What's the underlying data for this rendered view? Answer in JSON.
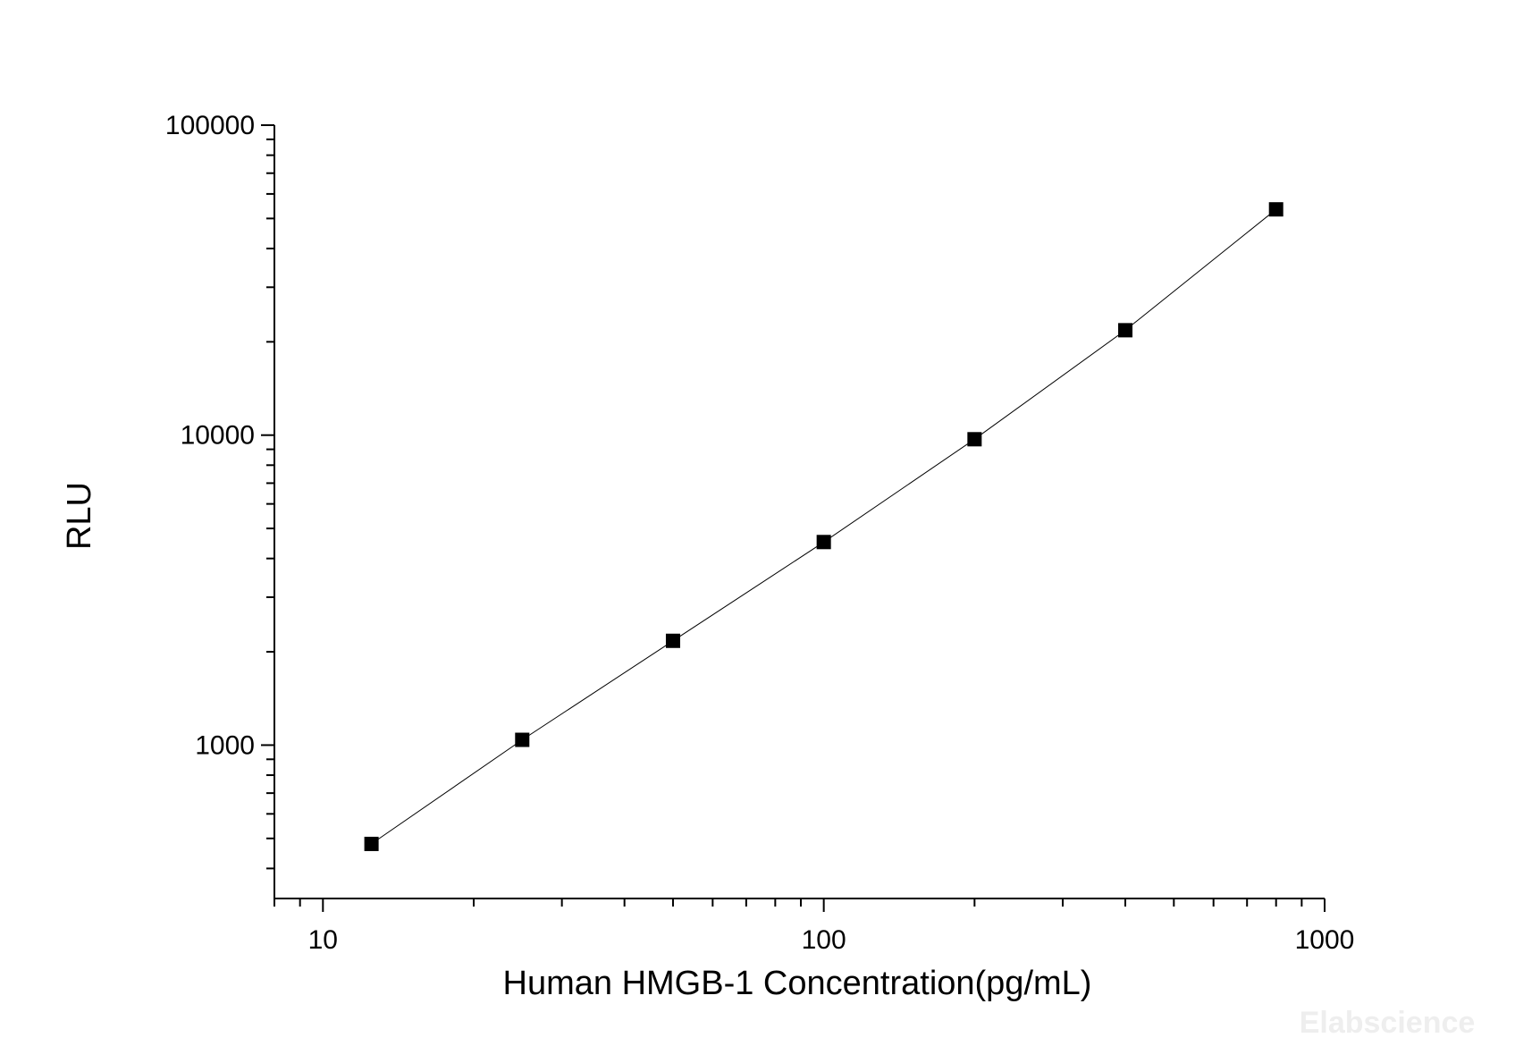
{
  "chart_data": {
    "type": "line",
    "x_scale": "log",
    "y_scale": "log",
    "xlim": [
      8,
      1000
    ],
    "ylim": [
      320,
      100000
    ],
    "xlabel": "Human HMGB-1 Concentration(pg/mL)",
    "ylabel": "RLU",
    "x_ticks": [
      10,
      100,
      1000
    ],
    "x_tick_labels": [
      "10",
      "100",
      "1000"
    ],
    "y_ticks": [
      1000,
      10000,
      100000
    ],
    "y_tick_labels": [
      "1000",
      "10000",
      "100000"
    ],
    "grid": false,
    "legend": "none",
    "marker": "square",
    "series": [
      {
        "x": [
          12.5,
          25,
          50,
          100,
          200,
          400,
          800
        ],
        "y": [
          480,
          1040,
          2170,
          4520,
          9700,
          21800,
          53500
        ]
      }
    ],
    "colors": {
      "line": "#000000",
      "marker": "#000000",
      "axis": "#000000"
    }
  },
  "watermark": "Elabscience"
}
